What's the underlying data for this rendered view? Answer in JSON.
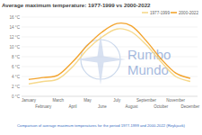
{
  "chart_data": {
    "type": "line",
    "title": "Average maximum temperature: 1977-1999 vs 2000-2022",
    "categories": [
      "January",
      "February",
      "March",
      "April",
      "May",
      "June",
      "July",
      "August",
      "September",
      "October",
      "November",
      "December"
    ],
    "series": [
      {
        "name": "1977-1999",
        "color": "#f6d98c",
        "values": [
          2.5,
          3.0,
          3.5,
          6.0,
          9.5,
          12.0,
          13.6,
          13.0,
          10.4,
          7.0,
          4.0,
          3.0
        ]
      },
      {
        "name": "2000-2022",
        "color": "#f3a42e",
        "values": [
          3.4,
          3.8,
          4.3,
          7.0,
          10.3,
          13.0,
          14.7,
          14.2,
          11.2,
          7.6,
          4.7,
          3.6
        ]
      }
    ],
    "ylim": [
      0,
      16
    ],
    "yticks": [
      {
        "value": 0,
        "label": "0 °C"
      },
      {
        "value": 2,
        "label": "2 °C"
      },
      {
        "value": 4,
        "label": "4 °C"
      },
      {
        "value": 6,
        "label": "6 °C"
      },
      {
        "value": 8,
        "label": "8 °C"
      },
      {
        "value": 10,
        "label": "10 °C"
      },
      {
        "value": 12,
        "label": "12 °C"
      },
      {
        "value": 14,
        "label": "14 °C"
      },
      {
        "value": 16,
        "label": "16 °C"
      }
    ],
    "grid": true,
    "legend": "top-right",
    "caption": "Comparison of average maximum temperatures for the period 1977-1999 and 2000-2022 (Reykjavik)",
    "watermark": [
      "Rumbo",
      "Mundo"
    ]
  }
}
